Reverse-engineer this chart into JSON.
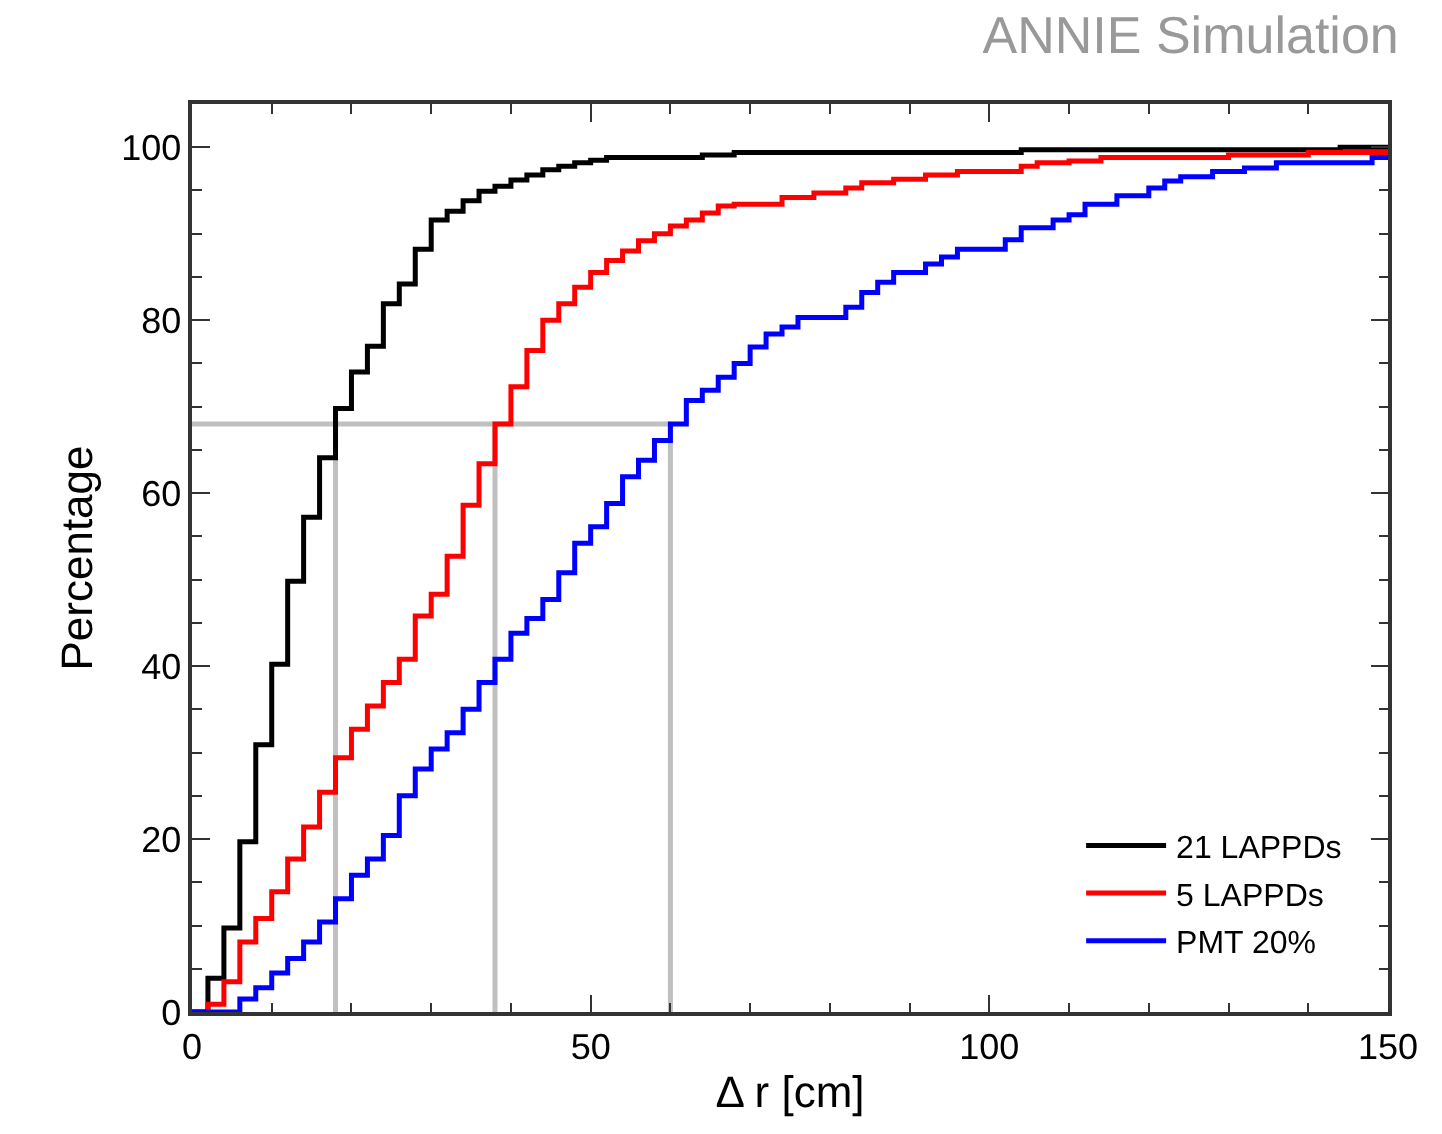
{
  "chart_data": {
    "type": "step",
    "title": "ANNIE Simulation",
    "xlabel": "Δ r [cm]",
    "ylabel": "Percentage",
    "x": [
      0,
      2,
      4,
      6,
      8,
      10,
      12,
      14,
      16,
      18,
      20,
      22,
      24,
      26,
      28,
      30,
      32,
      34,
      36,
      38,
      40,
      42,
      44,
      46,
      48,
      50,
      52,
      54,
      56,
      58,
      60,
      62,
      64,
      66,
      68,
      70,
      72,
      74,
      76,
      78,
      80,
      82,
      84,
      86,
      88,
      90,
      92,
      94,
      96,
      98,
      100,
      102,
      104,
      106,
      108,
      110,
      112,
      114,
      116,
      118,
      120,
      122,
      124,
      126,
      128,
      130,
      132,
      134,
      136,
      138,
      140,
      142,
      144,
      146,
      148,
      150
    ],
    "series": [
      {
        "name": "21 LAPPDs",
        "color": "#000000",
        "values": [
          0,
          3.9,
          9.7,
          19.7,
          30.9,
          40.2,
          49.8,
          57.2,
          64.1,
          69.8,
          74,
          77,
          81.9,
          84.2,
          88.2,
          91.6,
          92.6,
          93.8,
          94.9,
          95.5,
          96.2,
          96.8,
          97.4,
          97.8,
          98.2,
          98.5,
          98.8,
          98.8,
          98.8,
          98.8,
          98.8,
          98.8,
          99.1,
          99.1,
          99.4,
          99.4,
          99.4,
          99.4,
          99.4,
          99.4,
          99.4,
          99.4,
          99.4,
          99.4,
          99.4,
          99.4,
          99.4,
          99.4,
          99.4,
          99.4,
          99.4,
          99.4,
          99.7,
          99.7,
          99.7,
          99.7,
          99.7,
          99.7,
          99.7,
          99.7,
          99.7,
          99.7,
          99.7,
          99.7,
          99.7,
          99.7,
          99.7,
          99.7,
          99.7,
          99.7,
          99.7,
          99.7,
          100,
          100,
          100,
          100
        ]
      },
      {
        "name": "5 LAPPDs",
        "color": "#ff0000",
        "values": [
          0,
          0.9,
          3.5,
          8.1,
          10.8,
          13.9,
          17.7,
          21.4,
          25.4,
          29.4,
          32.7,
          35.4,
          38.1,
          40.8,
          45.8,
          48.3,
          52.7,
          58.6,
          63.4,
          68,
          72.3,
          76.5,
          80,
          81.9,
          83.8,
          85.5,
          86.9,
          88,
          89.2,
          90,
          90.9,
          91.6,
          92.4,
          93.2,
          93.4,
          93.4,
          93.4,
          94.2,
          94.2,
          94.7,
          94.7,
          95.3,
          95.9,
          95.9,
          96.3,
          96.3,
          96.8,
          96.8,
          97.2,
          97.2,
          97.2,
          97.2,
          97.8,
          98.2,
          98.2,
          98.4,
          98.4,
          98.8,
          98.8,
          98.8,
          98.8,
          98.8,
          98.8,
          98.8,
          98.8,
          99.1,
          99.1,
          99.1,
          99.1,
          99.1,
          99.4,
          99.4,
          99.4,
          99.4,
          99.4,
          99.4
        ]
      },
      {
        "name": "PMT 20%",
        "color": "#0000ff",
        "values": [
          0,
          0,
          0,
          1.5,
          2.8,
          4.5,
          6.2,
          8.1,
          10.4,
          13.1,
          15.8,
          17.7,
          20.4,
          25.0,
          28.1,
          30.4,
          32.3,
          35.0,
          38.1,
          40.8,
          43.8,
          45.5,
          47.7,
          50.8,
          54.2,
          56.1,
          58.8,
          61.9,
          63.8,
          66.1,
          68.0,
          70.7,
          71.9,
          73.4,
          75.0,
          76.9,
          78.4,
          79.2,
          80.3,
          80.3,
          80.3,
          81.5,
          83.2,
          84.4,
          85.5,
          85.5,
          86.5,
          87.3,
          88.2,
          88.2,
          88.2,
          89.3,
          90.7,
          90.7,
          91.6,
          92.2,
          93.4,
          93.4,
          94.4,
          94.4,
          95.3,
          96.1,
          96.6,
          96.6,
          97.2,
          97.2,
          97.6,
          97.6,
          98.2,
          98.2,
          98.2,
          98.2,
          98.2,
          98.2,
          98.8,
          98.8
        ]
      }
    ],
    "ref_lines": [
      {
        "axis": "y",
        "value": 68,
        "color": "#c0c0c0"
      },
      {
        "axis": "x",
        "value": 18,
        "color": "#c0c0c0"
      },
      {
        "axis": "x",
        "value": 38,
        "color": "#c0c0c0"
      },
      {
        "axis": "x",
        "value": 60,
        "color": "#c0c0c0"
      }
    ],
    "xlim": [
      0,
      150
    ],
    "xticks": [
      0,
      50,
      100,
      150
    ],
    "ylim": [
      0,
      105
    ],
    "yticks": [
      0,
      20,
      40,
      60,
      80,
      100
    ],
    "grid": false,
    "legend": "bottom right"
  }
}
